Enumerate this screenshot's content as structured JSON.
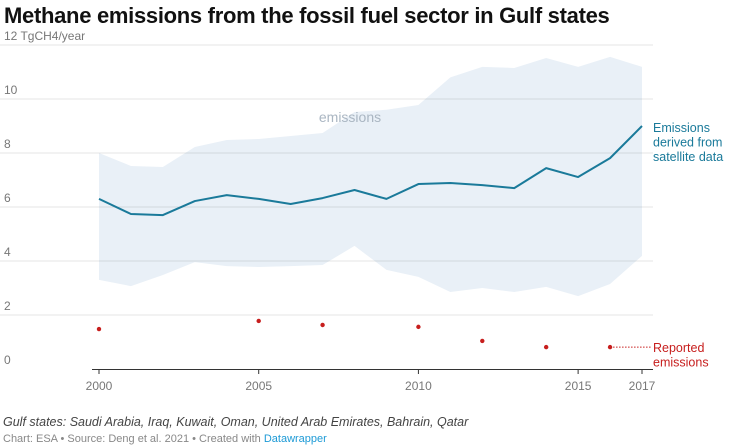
{
  "title": "Methane emissions from the fossil fuel sector in Gulf states",
  "note": "Gulf states: Saudi Arabia, Iraq, Kuwait, Oman, United Arab Emirates, Bahrain, Qatar",
  "credit": {
    "text": "Chart: ESA • Source: Deng et al. 2021 • Created with ",
    "link": "Datawrapper"
  },
  "chart_data": {
    "type": "line",
    "title": "Methane emissions from the fossil fuel sector in Gulf states",
    "ylabel": "TgCH4/year",
    "ylim": [
      0,
      12
    ],
    "yticks": [
      0,
      2,
      4,
      6,
      8,
      10,
      12
    ],
    "ytick_labels": [
      "0",
      "2",
      "4",
      "6",
      "8",
      "10",
      "12 TgCH4/year"
    ],
    "xlim": [
      2000,
      2017
    ],
    "xticks": [
      2000,
      2005,
      2010,
      2015,
      2017
    ],
    "xtick_labels": [
      "2000",
      "2005",
      "2010",
      "2015",
      "2017"
    ],
    "grid": true,
    "x": [
      2000,
      2001,
      2002,
      2003,
      2004,
      2005,
      2006,
      2007,
      2008,
      2009,
      2010,
      2011,
      2012,
      2013,
      2014,
      2015,
      2016,
      2017
    ],
    "series": [
      {
        "name": "Emissions derived from satellite data",
        "color": "#1a7a9a",
        "values": [
          6.3,
          5.74,
          5.7,
          6.22,
          6.44,
          6.3,
          6.11,
          6.33,
          6.63,
          6.3,
          6.85,
          6.89,
          6.81,
          6.7,
          7.44,
          7.11,
          7.81,
          9.0
        ]
      },
      {
        "name": "emissions",
        "type": "band",
        "color": "#e9f0f7",
        "upper": [
          8.0,
          7.52,
          7.48,
          8.22,
          8.48,
          8.52,
          8.63,
          8.74,
          9.52,
          9.6,
          9.78,
          10.8,
          11.19,
          11.15,
          11.52,
          11.19,
          11.56,
          11.19
        ],
        "lower": [
          3.3,
          3.07,
          3.48,
          3.96,
          3.81,
          3.78,
          3.81,
          3.85,
          4.56,
          3.67,
          3.41,
          2.85,
          3.0,
          2.85,
          3.04,
          2.7,
          3.15,
          4.19
        ]
      },
      {
        "name": "Reported emissions",
        "type": "scatter",
        "color": "#c71e1d",
        "x": [
          2000,
          2005,
          2007,
          2010,
          2012,
          2014,
          2016
        ],
        "values": [
          1.48,
          1.78,
          1.63,
          1.56,
          1.04,
          0.81,
          0.81
        ]
      }
    ],
    "annotations": {
      "band_label": "emissions",
      "line_label": [
        "Emissions",
        "derived from",
        "satellite data"
      ],
      "reported_label": [
        "Reported",
        "emissions"
      ]
    }
  }
}
